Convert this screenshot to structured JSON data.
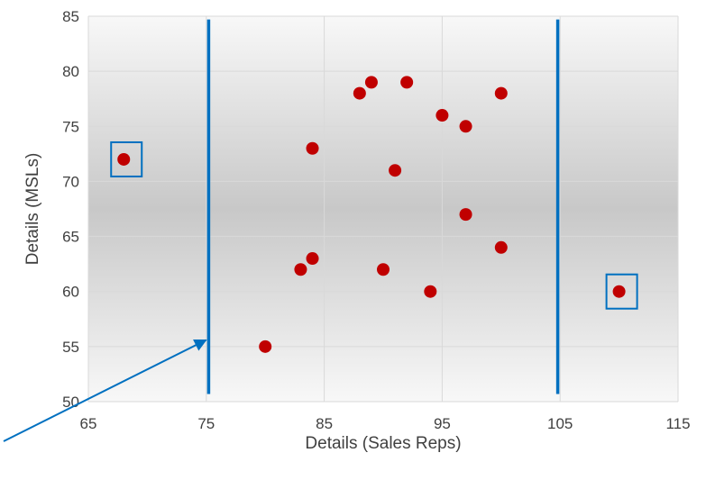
{
  "chart_data": {
    "type": "scatter",
    "title": "",
    "xlabel": "Details (Sales Reps)",
    "ylabel": "Details (MSLs)",
    "xlim": [
      65,
      115
    ],
    "ylim": [
      50,
      85
    ],
    "x_ticks": [
      65,
      75,
      85,
      95,
      105,
      115
    ],
    "y_ticks": [
      50,
      55,
      60,
      65,
      70,
      75,
      80,
      85
    ],
    "grid": true,
    "legend": "none",
    "points": [
      {
        "x": 68,
        "y": 72
      },
      {
        "x": 80,
        "y": 55
      },
      {
        "x": 83,
        "y": 62
      },
      {
        "x": 84,
        "y": 73
      },
      {
        "x": 84,
        "y": 63
      },
      {
        "x": 88,
        "y": 78
      },
      {
        "x": 89,
        "y": 79
      },
      {
        "x": 90,
        "y": 62
      },
      {
        "x": 91,
        "y": 71
      },
      {
        "x": 92,
        "y": 79
      },
      {
        "x": 94,
        "y": 60
      },
      {
        "x": 95,
        "y": 76
      },
      {
        "x": 97,
        "y": 75
      },
      {
        "x": 97,
        "y": 67
      },
      {
        "x": 100,
        "y": 78
      },
      {
        "x": 100,
        "y": 64
      },
      {
        "x": 110,
        "y": 60
      }
    ],
    "annotations": {
      "threshold_lines_x": [
        75.2,
        104.8
      ],
      "highlighted_points": [
        {
          "x": 68,
          "y": 72
        },
        {
          "x": 110,
          "y": 60
        }
      ],
      "arrow_target": {
        "x": 75.2,
        "y": 56
      }
    },
    "colors": {
      "point": "#C00000",
      "annotation": "#0070C0",
      "gridline": "#D9D9D9",
      "plot_bg_edge": "#F8F8F8",
      "plot_bg_center": "#C8C8C8"
    }
  }
}
